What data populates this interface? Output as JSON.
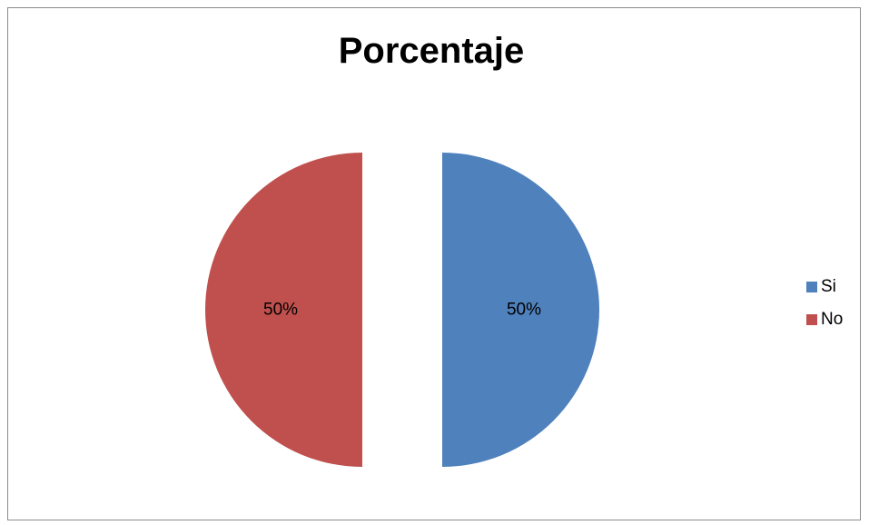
{
  "chart_data": {
    "type": "pie",
    "title": "Porcentaje",
    "categories": [
      "Si",
      "No"
    ],
    "values": [
      50,
      50
    ],
    "data_labels": [
      "50%",
      "50%"
    ],
    "colors": [
      "#4f81bd",
      "#c0504d"
    ],
    "legend_position": "right",
    "exploded": true
  }
}
